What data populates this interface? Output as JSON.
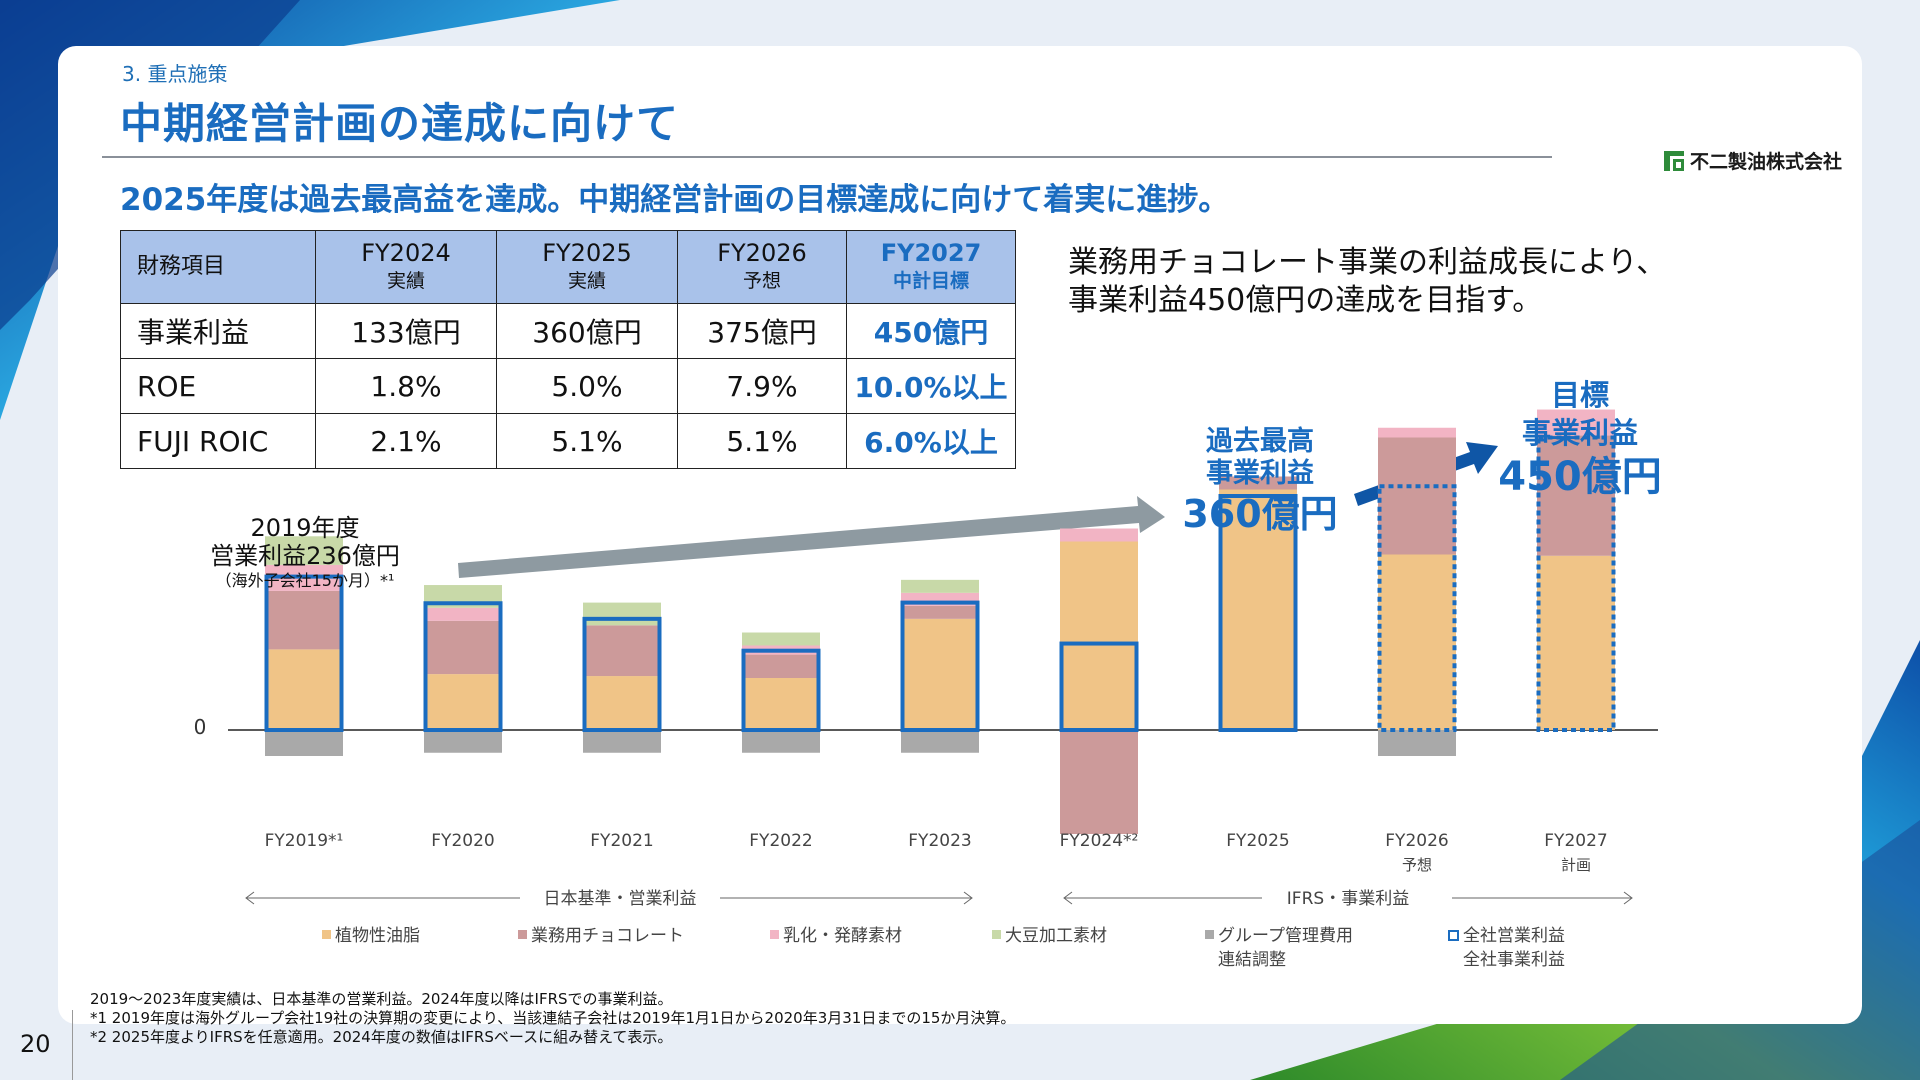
{
  "header": {
    "section": "3. 重点施策",
    "title": "中期経営計画の達成に向けて",
    "subtitle": "2025年度は過去最高益を達成。中期経営計画の目標達成に向けて着実に進捗。",
    "company": "不二製油株式会社"
  },
  "table": {
    "headers": [
      {
        "top": "財務項目",
        "sub": ""
      },
      {
        "top": "FY2024",
        "sub": "実績"
      },
      {
        "top": "FY2025",
        "sub": "実績"
      },
      {
        "top": "FY2026",
        "sub": "予想"
      },
      {
        "top": "FY2027",
        "sub": "中計目標"
      }
    ],
    "rows": [
      [
        "事業利益",
        "133億円",
        "360億円",
        "375億円",
        "450億円"
      ],
      [
        "ROE",
        "1.8%",
        "5.0%",
        "7.9%",
        "10.0%以上"
      ],
      [
        "FUJI ROIC",
        "2.1%",
        "5.1%",
        "5.1%",
        "6.0%以上"
      ]
    ]
  },
  "message": {
    "line1": "業務用チョコレート事業の利益成長により、",
    "line2": "事業利益450億円の達成を目指す。"
  },
  "annotations": {
    "fy2019_line1": "2019年度",
    "fy2019_line2": "営業利益236億円",
    "fy2019_line3": "（海外子会社15か月）*¹",
    "record_line1": "過去最高",
    "record_line2": "事業利益",
    "record_value": "360億円",
    "target_line1": "目標",
    "target_line2": "事業利益",
    "target_value": "450億円"
  },
  "chart_data": {
    "type": "bar",
    "stacked": true,
    "zero_label": "0",
    "categories": [
      "FY2019*¹",
      "FY2020",
      "FY2021",
      "FY2022",
      "FY2023",
      "FY2024*²",
      "FY2025",
      "FY2026",
      "FY2027"
    ],
    "category_sublabels": [
      "",
      "",
      "",
      "",
      "",
      "",
      "",
      "予想",
      "計画"
    ],
    "series": [
      {
        "name": "植物性油脂",
        "color": "#f0c487",
        "values": [
          124,
          86,
          83,
          80,
          171,
          290,
          370,
          270,
          268
        ]
      },
      {
        "name": "業務用チョコレート",
        "color": "#cc9a9a",
        "values": [
          90,
          82,
          78,
          36,
          20,
          -160,
          20,
          180,
          185
        ]
      },
      {
        "name": "乳化・発酵素材",
        "color": "#f2b4c4",
        "values": [
          40,
          20,
          0,
          14,
          20,
          20,
          0,
          15,
          40
        ]
      },
      {
        "name": "大豆加工素材",
        "color": "#c8d9a8",
        "values": [
          44,
          35,
          35,
          20,
          20,
          0,
          0,
          0,
          0
        ]
      },
      {
        "name": "グループ管理費用 連結調整",
        "color": "#a9a9a9",
        "values": [
          -40,
          -35,
          -35,
          -35,
          -35,
          0,
          0,
          -40,
          0
        ]
      }
    ],
    "total_series": {
      "name": "全社営業利益 全社事業利益",
      "values": [
        236,
        195,
        171,
        122,
        196,
        133,
        360,
        375,
        450
      ]
    },
    "projected_categories": [
      "FY2026",
      "FY2027"
    ],
    "groups": [
      {
        "label": "日本基準・営業利益",
        "from": "FY2019*¹",
        "to": "FY2023"
      },
      {
        "label": "IFRS・事業利益",
        "from": "FY2024*²",
        "to": "FY2027"
      }
    ],
    "legend_position": "bottom"
  },
  "notes": [
    "2019～2023年度実績は、日本基準の営業利益。2024年度以降はIFRSでの事業利益。",
    "*1 2019年度は海外グループ会社19社の決算期の変更により、当該連結子会社は2019年1月1日から2020年3月31日までの15か月決算。",
    "*2 2025年度よりIFRSを任意適用。2024年度の数値はIFRSベースに組み替えて表示。"
  ],
  "page_number": "20",
  "colors": {
    "accent": "#1a6cc0",
    "header_fill": "#a9c2ea",
    "total_outline": "#1a6cc0",
    "arrow_gray": "#8e9aa1",
    "arrow_blue": "#0f56a6"
  }
}
